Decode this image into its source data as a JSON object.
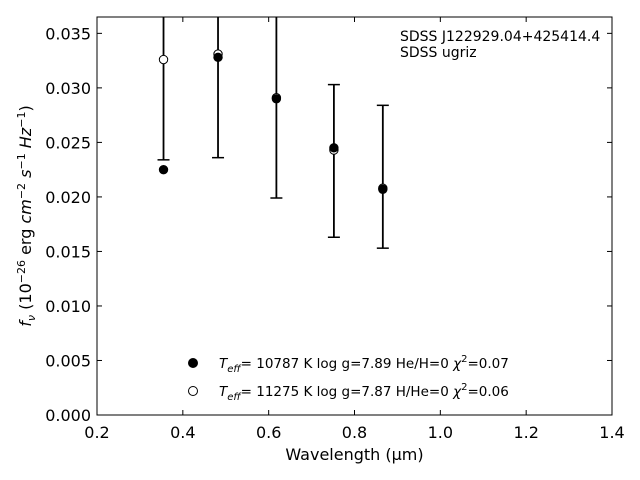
{
  "chart_data": {
    "type": "scatter",
    "title": "",
    "xlabel": "Wavelength (μm)",
    "ylabel": "f_ν (10^-26 erg cm^-2 s^-1 Hz^-1)",
    "xlim": [
      0.2,
      1.4
    ],
    "ylim": [
      0.0,
      0.0365
    ],
    "xticks": [
      "0.2",
      "0.4",
      "0.6",
      "0.8",
      "1.0",
      "1.2",
      "1.4"
    ],
    "yticks": [
      "0.000",
      "0.005",
      "0.010",
      "0.015",
      "0.020",
      "0.025",
      "0.030",
      "0.035"
    ],
    "annotation": [
      "SDSS J122929.04+425414.4",
      "SDSS ugriz"
    ],
    "observed": {
      "x": [
        0.355,
        0.482,
        0.618,
        0.752,
        0.866
      ],
      "y_low": [
        0.0234,
        0.0236,
        0.0199,
        0.0163,
        0.0153
      ],
      "y_high": [
        0.042,
        0.042,
        0.042,
        0.0303,
        0.0284
      ]
    },
    "series": [
      {
        "marker": "filled",
        "legend": {
          "teff": "= 10787 K",
          "logg": "log g=7.89",
          "comp": "He/H=0",
          "chi": "=0.07"
        },
        "x": [
          0.355,
          0.482,
          0.618,
          0.752,
          0.866
        ],
        "y": [
          0.0225,
          0.0328,
          0.029,
          0.0245,
          0.0207
        ]
      },
      {
        "marker": "open",
        "legend": {
          "teff": "= 11275 K",
          "logg": "log g=7.87",
          "comp": "H/He=0",
          "chi": "=0.06"
        },
        "x": [
          0.355,
          0.482,
          0.618,
          0.752,
          0.866
        ],
        "y": [
          0.0326,
          0.0331,
          0.0291,
          0.0243,
          0.0208
        ]
      }
    ],
    "legend_placement": "lower-center",
    "annotation_placement": "top-right",
    "grid": false
  }
}
